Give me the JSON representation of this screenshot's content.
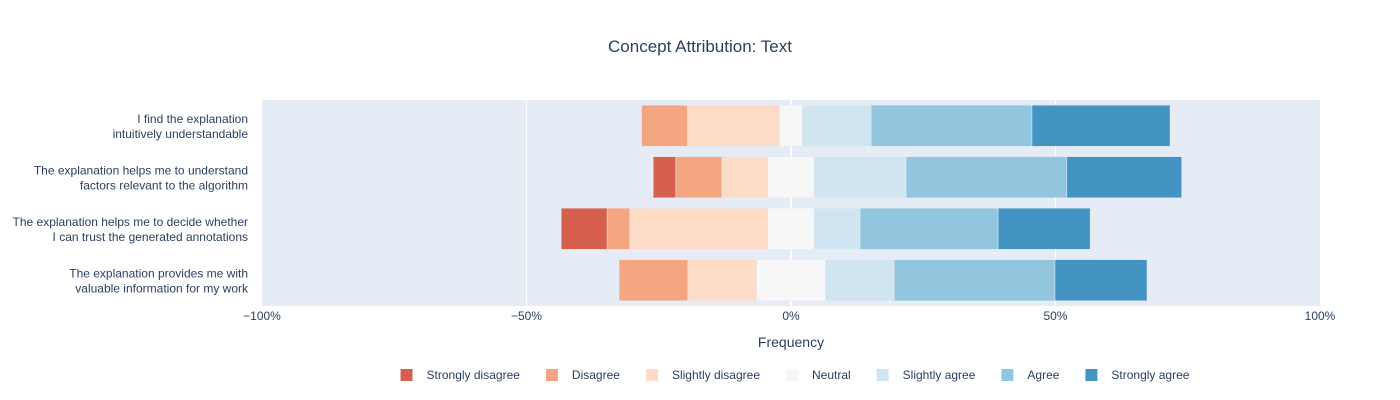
{
  "chart_data": {
    "type": "bar",
    "orientation": "horizontal",
    "stacking": "diverging",
    "title": "Concept Attribution: Text",
    "xlabel": "Frequency",
    "ylabel": "",
    "xlim": [
      -100,
      100
    ],
    "xticks": [
      -100,
      -50,
      0,
      50,
      100
    ],
    "xtick_labels": [
      "−100%",
      "−50%",
      "0%",
      "50%",
      "100%"
    ],
    "grid": true,
    "legend_position": "bottom",
    "categories": [
      [
        "I find the explanation",
        "intuitively understandable"
      ],
      [
        "The explanation helps me to understand",
        "factors relevant to the algorithm"
      ],
      [
        "The explanation helps me to decide whether",
        "I can trust the generated annotations"
      ],
      [
        "The explanation provides me with",
        "valuable information for my work"
      ]
    ],
    "series": [
      {
        "name": "Strongly disagree",
        "color": "#d6604d",
        "values": [
          0,
          4.3,
          8.7,
          0
        ]
      },
      {
        "name": "Disagree",
        "color": "#f4a582",
        "values": [
          8.7,
          8.7,
          4.3,
          13
        ]
      },
      {
        "name": "Slightly disagree",
        "color": "#fddbc7",
        "values": [
          17.4,
          8.7,
          26.1,
          13
        ]
      },
      {
        "name": "Neutral",
        "color": "#f7f7f7",
        "values": [
          4.3,
          8.7,
          8.7,
          13
        ]
      },
      {
        "name": "Slightly agree",
        "color": "#d1e5f0",
        "values": [
          13,
          17.4,
          8.7,
          13
        ]
      },
      {
        "name": "Agree",
        "color": "#92c5de",
        "values": [
          30.4,
          30.4,
          26.1,
          30.4
        ]
      },
      {
        "name": "Strongly agree",
        "color": "#4393c3",
        "values": [
          26.1,
          21.7,
          17.4,
          17.4
        ]
      }
    ]
  }
}
